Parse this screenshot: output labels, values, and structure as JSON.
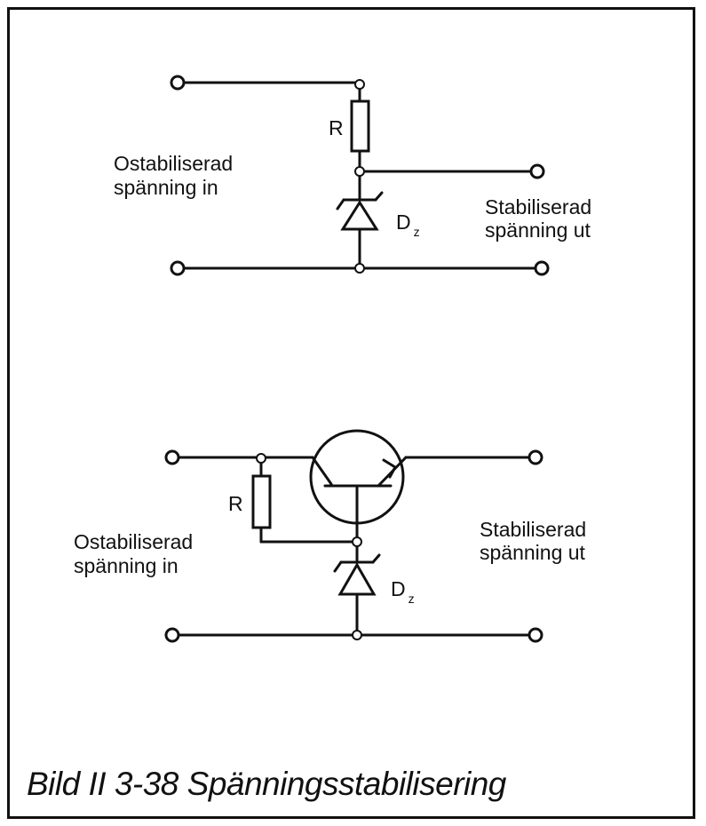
{
  "figure": {
    "caption": "Bild II 3-38 Spänningsstabilisering"
  },
  "circuit_top": {
    "input_label_line1": "Ostabiliserad",
    "input_label_line2": "spänning in",
    "output_label_line1": "Stabiliserad",
    "output_label_line2": "spänning ut",
    "resistor_label": "R",
    "zener_label": "D",
    "zener_subscript": "z"
  },
  "circuit_bottom": {
    "input_label_line1": "Ostabiliserad",
    "input_label_line2": "spänning in",
    "output_label_line1": "Stabiliserad",
    "output_label_line2": "spänning ut",
    "resistor_label": "R",
    "zener_label": "D",
    "zener_subscript": "z"
  }
}
